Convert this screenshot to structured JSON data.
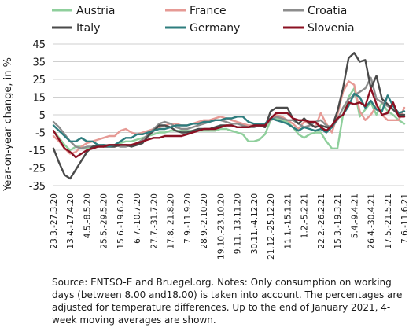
{
  "chart_data": {
    "type": "line",
    "title": "",
    "xlabel": "",
    "ylabel": "Year-on-year change, in %",
    "ylim": [
      -35,
      45
    ],
    "yticks": [
      -35,
      -25,
      -15,
      -5,
      5,
      15,
      25,
      35,
      45
    ],
    "grid": "horizontal",
    "legend_position": "top",
    "categories": [
      "23.3.-27.3.20",
      "30.3.-3.4.20",
      "6.4.-10.4.20",
      "13.4.-17.4.20",
      "20.4.-24.4.20",
      "27.4.-1.5.20",
      "4.5.-8.5.20",
      "11.5.-15.5.20",
      "18.5.-22.5.20",
      "25.5.-29.5.20",
      "1.6.-5.6.20",
      "8.6.-12.6.20",
      "15.6.-19.6.20",
      "22.6.-26.6.20",
      "29.6.-3.7.20",
      "6.7.-10.7.20",
      "13.7.-17.7.20",
      "20.7.-24.7.20",
      "27.7.-31.7.20",
      "3.8.-7.8.20",
      "10.8.-14.8.20",
      "17.8.-21.8.20",
      "24.8.-28.8.20",
      "31.8.-4.9.20",
      "7.9.-11.9.20",
      "14.9.-18.9.20",
      "21.9.-25.9.20",
      "28.9.-2.10.20",
      "5.10.-9.10.20",
      "12.10.-16.10.20",
      "19.10.-23.10.20",
      "26.10.-30.10.20",
      "2.11.-6.11.20",
      "9.11.-13.11.20",
      "16.11.-20.11.20",
      "23.11.-27.11.20",
      "30.11.-4.12.20",
      "7.12.-11.12.20",
      "14.12.-18.12.20",
      "21.12.-25.12.20",
      "28.12.-1.1.21",
      "4.1.-8.1.21",
      "11.1.-15.1.21",
      "18.1.-22.1.21",
      "25.1.-29.1.21",
      "1.2.-5.2.21",
      "8.2.-12.2.21",
      "15.2.-19.2.21",
      "22.2.-26.2.21",
      "1.3.-5.3.21",
      "8.3.-12.3.21",
      "15.3.-19.3.21",
      "22.3.-26.3.21",
      "29.3.-2.4.21",
      "5.4.-9.4.21",
      "12.4.-16.4.21",
      "19.4.-23.4.21",
      "26.4.-30.4.21",
      "3.5.-7.5.21",
      "10.5.-14.5.21",
      "17.5.-21.5.21",
      "24.5.-28.5.21",
      "31.5.-4.6.21",
      "7.6.-11.6.21"
    ],
    "xtick_labels": [
      "23.3.-27.3.20",
      "13.4.-17.4.20",
      "4.5.-8.5.20",
      "25.5.-29.5.20",
      "15.6.-19.6.20",
      "6.7.-10.7.20",
      "27.7.-31.7.20",
      "17.8.-21.8.20",
      "7.9.-11.9.20",
      "28.9.-2.10.20",
      "19.10.-23.10.20",
      "9.11.-13.11.20",
      "30.11.-4.12.20",
      "21.12.-25.12.20",
      "11.1.-15.1.21",
      "1.2.-5.2.21",
      "22.2.-26.2.21",
      "15.3.-19.3.21",
      "5.4.-9.4.21",
      "26.4.-30.4.21",
      "17.5.-21.5.21",
      "7.6.-11.6.21"
    ],
    "series": [
      {
        "name": "Austria",
        "color": "#8fcf9c",
        "values": [
          -4,
          -8,
          -12,
          -15,
          -13,
          -13,
          -14,
          -14,
          -13,
          -13,
          -12,
          -12,
          -11,
          -10,
          -10,
          -9,
          -8,
          -7,
          -6,
          -5,
          -5,
          -4,
          -4,
          -4,
          -4,
          -4,
          -4,
          -4,
          -4,
          -4,
          -3,
          -3,
          -4,
          -5,
          -6,
          -10,
          -10,
          -9,
          -6,
          2,
          3,
          2,
          1,
          -2,
          -6,
          -8,
          -6,
          -5,
          -5,
          -10,
          -14,
          -14,
          5,
          15,
          20,
          4,
          8,
          12,
          5,
          12,
          7,
          5,
          2,
          0
        ]
      },
      {
        "name": "France",
        "color": "#e69a95",
        "values": [
          -7,
          -10,
          -14,
          -17,
          -16,
          -13,
          -11,
          -10,
          -9,
          -8,
          -7,
          -7,
          -4,
          -3,
          -5,
          -6,
          -5,
          -4,
          -3,
          -2,
          -1,
          0,
          0,
          -1,
          -1,
          0,
          1,
          2,
          2,
          3,
          4,
          3,
          2,
          1,
          0,
          -1,
          -1,
          -1,
          -2,
          3,
          5,
          4,
          2,
          0,
          -3,
          1,
          0,
          -2,
          6,
          0,
          -5,
          5,
          18,
          24,
          22,
          7,
          2,
          5,
          10,
          5,
          2,
          2,
          2,
          9
        ]
      },
      {
        "name": "Croatia",
        "color": "#8d8d8d",
        "values": [
          1,
          -2,
          -6,
          -10,
          -13,
          -14,
          -13,
          -13,
          -13,
          -12,
          -12,
          -12,
          -13,
          -13,
          -12,
          -11,
          -9,
          -6,
          -3,
          0,
          1,
          0,
          -2,
          -3,
          -3,
          -2,
          -1,
          0,
          1,
          2,
          2,
          1,
          0,
          0,
          -1,
          -2,
          -2,
          -1,
          -1,
          2,
          4,
          3,
          2,
          2,
          0,
          -2,
          -1,
          1,
          2,
          -1,
          -2,
          2,
          9,
          14,
          16,
          18,
          20,
          26,
          14,
          12,
          10,
          8,
          5,
          4
        ]
      },
      {
        "name": "Italy",
        "color": "#4a4a4a",
        "values": [
          -14,
          -22,
          -29,
          -31,
          -26,
          -21,
          -16,
          -13,
          -12,
          -13,
          -13,
          -13,
          -12,
          -12,
          -13,
          -12,
          -11,
          -7,
          -4,
          -1,
          -1,
          -2,
          -4,
          -5,
          -5,
          -4,
          -3,
          -3,
          -3,
          -2,
          -1,
          -1,
          -1,
          -2,
          -2,
          -2,
          -1,
          -1,
          -2,
          7,
          9,
          9,
          9,
          3,
          0,
          3,
          0,
          -2,
          -1,
          -2,
          -2,
          7,
          20,
          37,
          40,
          35,
          36,
          20,
          27,
          14,
          11,
          8,
          5,
          5
        ]
      },
      {
        "name": "Germany",
        "color": "#2e7d7e",
        "values": [
          -1,
          -4,
          -7,
          -10,
          -10,
          -8,
          -10,
          -10,
          -12,
          -12,
          -13,
          -12,
          -10,
          -8,
          -8,
          -6,
          -6,
          -5,
          -4,
          -3,
          -3,
          -2,
          -1,
          -1,
          -1,
          0,
          0,
          1,
          1,
          2,
          2,
          3,
          3,
          4,
          4,
          1,
          0,
          0,
          0,
          3,
          2,
          1,
          0,
          -2,
          -4,
          -2,
          -3,
          -4,
          -3,
          -5,
          -2,
          3,
          5,
          10,
          17,
          15,
          9,
          13,
          8,
          7,
          16,
          10,
          6,
          7
        ]
      },
      {
        "name": "Slovenia",
        "color": "#8b1022",
        "values": [
          -4,
          -9,
          -14,
          -16,
          -19,
          -17,
          -15,
          -14,
          -13,
          -13,
          -12,
          -12,
          -12,
          -12,
          -12,
          -11,
          -10,
          -9,
          -8,
          -8,
          -7,
          -7,
          -7,
          -7,
          -6,
          -5,
          -4,
          -3,
          -3,
          -3,
          -2,
          -1,
          -1,
          -2,
          -2,
          -2,
          -1,
          -1,
          -1,
          3,
          6,
          6,
          6,
          3,
          2,
          2,
          1,
          1,
          -2,
          -4,
          -1,
          3,
          5,
          12,
          11,
          12,
          10,
          20,
          11,
          5,
          6,
          12,
          4,
          4
        ]
      }
    ]
  },
  "note": {
    "text": "Source: ENTSO-E and Bruegel.org. Notes: Only consumption on working days (between 8.00 and18.00) is taken into account. The percentages are adjusted for temperature differences. Up to the end of January 2021, 4-week moving averages are shown."
  }
}
